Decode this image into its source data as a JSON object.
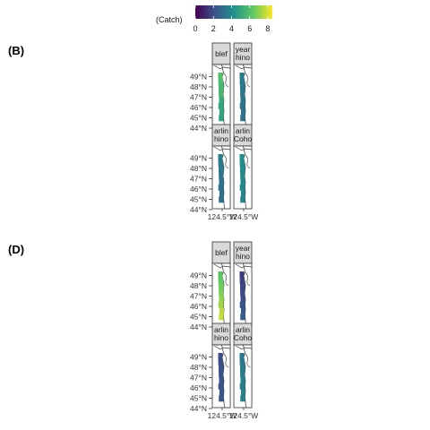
{
  "chart_data": {
    "type": "heatmap",
    "legend": {
      "title": "(Catch)",
      "ticks": [
        0,
        2,
        4,
        6,
        8
      ],
      "range": [
        0,
        8.5
      ],
      "placement": "top",
      "palette": [
        "#440154",
        "#3b528b",
        "#21918c",
        "#5ec962",
        "#fde725"
      ]
    },
    "panels": [
      {
        "label": "(B)",
        "y_ticks": [
          "49°N",
          "48°N",
          "47°N",
          "46°N",
          "45°N",
          "44°N"
        ],
        "x_ticks": [
          "124.5°W",
          "124.5°W"
        ],
        "facets": [
          {
            "strip": [
              "blef"
            ],
            "catch": [
              6.0,
              5.8,
              5.6,
              5.6,
              5.2,
              5.0,
              4.9,
              4.8
            ]
          },
          {
            "strip": [
              "year",
              "hino"
            ],
            "catch": [
              3.6,
              3.5,
              3.4,
              3.4,
              3.3,
              3.3,
              3.2,
              3.2
            ]
          },
          {
            "strip": [
              "arlin",
              "hino"
            ],
            "catch": [
              3.6,
              3.5,
              3.4,
              3.3,
              3.2,
              3.2,
              3.1,
              3.1
            ]
          },
          {
            "strip": [
              "arlin",
              "Coho"
            ],
            "catch": [
              4.2,
              4.1,
              4.0,
              4.0,
              3.9,
              3.9,
              3.8,
              3.8
            ]
          }
        ]
      },
      {
        "label": "(D)",
        "y_ticks": [
          "49°N",
          "48°N",
          "47°N",
          "46°N",
          "45°N",
          "44°N"
        ],
        "x_ticks": [
          "124.5°W",
          "124.5°W"
        ],
        "facets": [
          {
            "strip": [
              "blef"
            ],
            "catch": [
              6.2,
              6.4,
              6.6,
              6.8,
              7.0,
              7.3,
              7.6,
              7.8
            ]
          },
          {
            "strip": [
              "year",
              "hino"
            ],
            "catch": [
              1.6,
              1.7,
              1.8,
              1.9,
              2.0,
              2.2,
              2.4,
              2.6
            ]
          },
          {
            "strip": [
              "arlin",
              "hino"
            ],
            "catch": [
              2.0,
              2.0,
              2.1,
              2.1,
              2.2,
              2.2,
              2.3,
              2.3
            ]
          },
          {
            "strip": [
              "arlin",
              "Coho"
            ],
            "catch": [
              3.4,
              3.4,
              3.5,
              3.5,
              3.6,
              3.6,
              3.7,
              3.7
            ]
          }
        ]
      }
    ]
  }
}
